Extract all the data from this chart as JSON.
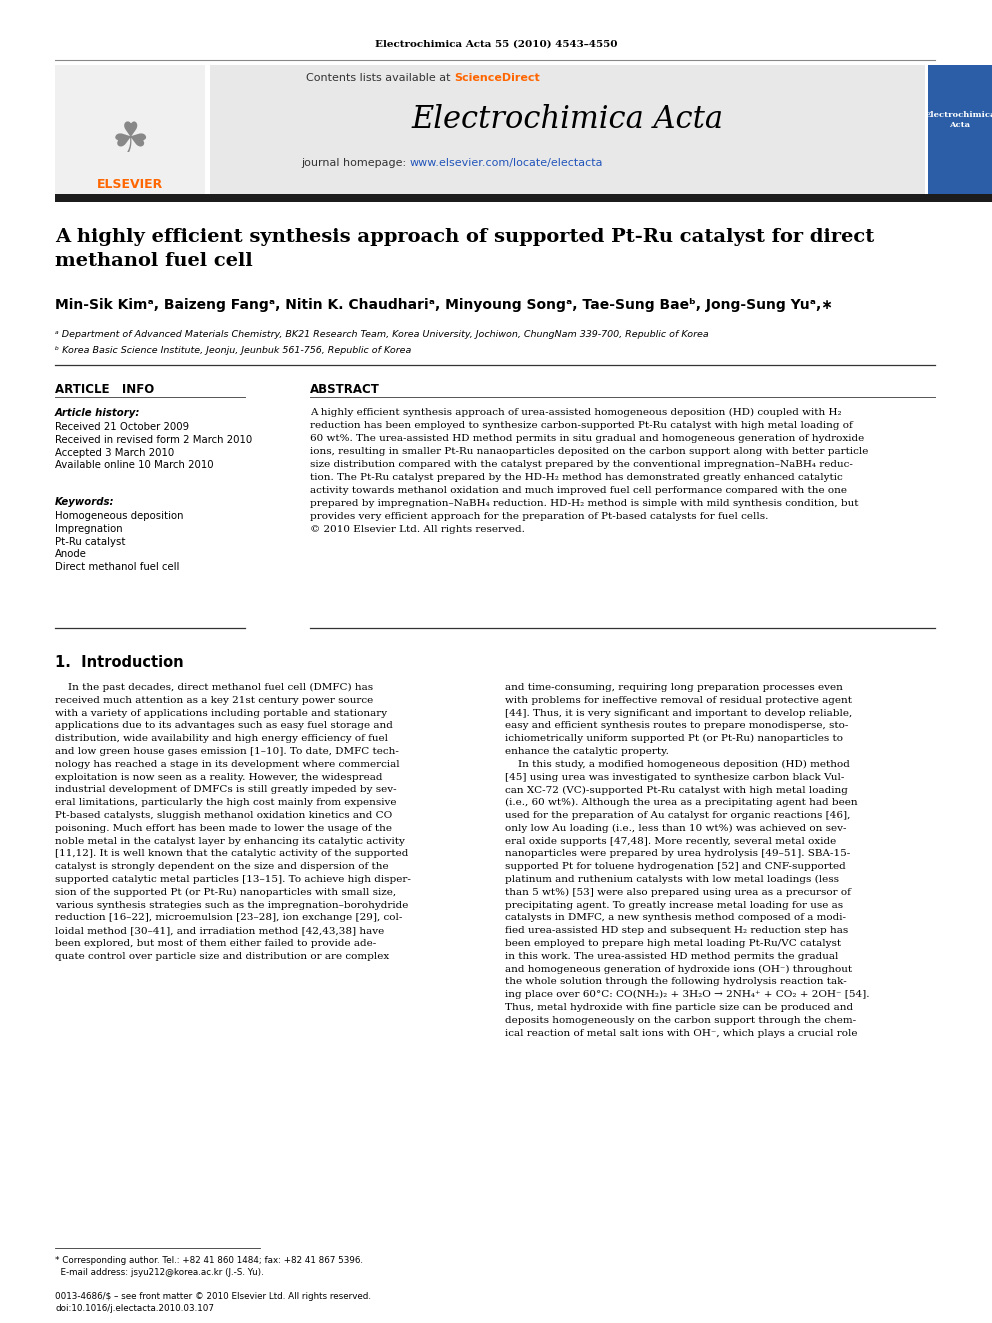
{
  "journal_header": "Electrochimica Acta 55 (2010) 4543–4550",
  "contents_line": "Contents lists available at ScienceDirect",
  "sciencedirect_color": "#FF6600",
  "journal_name": "Electrochimica Acta",
  "journal_homepage_prefix": "journal homepage: ",
  "journal_homepage_link": "www.elsevier.com/locate/electacta",
  "homepage_color": "#0000CC",
  "paper_title": "A highly efficient synthesis approach of supported Pt-Ru catalyst for direct\nmethanol fuel cell",
  "authors_line": "Min-Sik Kimᵃ, Baizeng Fangᵃ, Nitin K. Chaudhariᵃ, Minyoung Songᵃ, Tae-Sung Baeᵇ, Jong-Sung Yuᵃ,∗",
  "affil_a": "ᵃ Department of Advanced Materials Chemistry, BK21 Research Team, Korea University, Jochiwon, ChungNam 339-700, Republic of Korea",
  "affil_b": "ᵇ Korea Basic Science Institute, Jeonju, Jeunbuk 561-756, Republic of Korea",
  "article_info_header": "ARTICLE   INFO",
  "article_history_header": "Article history:",
  "article_history": "Received 21 October 2009\nReceived in revised form 2 March 2010\nAccepted 3 March 2010\nAvailable online 10 March 2010",
  "keywords_header": "Keywords:",
  "keywords": "Homogeneous deposition\nImpregnation\nPt-Ru catalyst\nAnode\nDirect methanol fuel cell",
  "abstract_header": "ABSTRACT",
  "abstract_text": "A highly efficient synthesis approach of urea-assisted homogeneous deposition (HD) coupled with H₂\nreduction has been employed to synthesize carbon-supported Pt-Ru catalyst with high metal loading of\n60 wt%. The urea-assisted HD method permits in situ gradual and homogeneous generation of hydroxide\nions, resulting in smaller Pt-Ru nanaoparticles deposited on the carbon support along with better particle\nsize distribution compared with the catalyst prepared by the conventional impregnation–NaBH₄ reduc-\ntion. The Pt-Ru catalyst prepared by the HD-H₂ method has demonstrated greatly enhanced catalytic\nactivity towards methanol oxidation and much improved fuel cell performance compared with the one\nprepared by impregnation–NaBH₄ reduction. HD-H₂ method is simple with mild synthesis condition, but\nprovides very efficient approach for the preparation of Pt-based catalysts for fuel cells.\n© 2010 Elsevier Ltd. All rights reserved.",
  "section1_header": "1.  Introduction",
  "intro_text_left": "    In the past decades, direct methanol fuel cell (DMFC) has\nreceived much attention as a key 21st century power source\nwith a variety of applications including portable and stationary\napplications due to its advantages such as easy fuel storage and\ndistribution, wide availability and high energy efficiency of fuel\nand low green house gases emission [1–10]. To date, DMFC tech-\nnology has reached a stage in its development where commercial\nexploitation is now seen as a reality. However, the widespread\nindustrial development of DMFCs is still greatly impeded by sev-\neral limitations, particularly the high cost mainly from expensive\nPt-based catalysts, sluggish methanol oxidation kinetics and CO\npoisoning. Much effort has been made to lower the usage of the\nnoble metal in the catalyst layer by enhancing its catalytic activity\n[11,12]. It is well known that the catalytic activity of the supported\ncatalyst is strongly dependent on the size and dispersion of the\nsupported catalytic metal particles [13–15]. To achieve high disper-\nsion of the supported Pt (or Pt-Ru) nanoparticles with small size,\nvarious synthesis strategies such as the impregnation–borohydride\nreduction [16–22], microemulsion [23–28], ion exchange [29], col-\nloidal method [30–41], and irradiation method [42,43,38] have\nbeen explored, but most of them either failed to provide ade-\nquate control over particle size and distribution or are complex",
  "intro_text_right": "and time-consuming, requiring long preparation processes even\nwith problems for ineffective removal of residual protective agent\n[44]. Thus, it is very significant and important to develop reliable,\neasy and efficient synthesis routes to prepare monodisperse, sto-\nichiometrically uniform supported Pt (or Pt-Ru) nanoparticles to\nenhance the catalytic property.\n    In this study, a modified homogeneous deposition (HD) method\n[45] using urea was investigated to synthesize carbon black Vul-\ncan XC-72 (VC)-supported Pt-Ru catalyst with high metal loading\n(i.e., 60 wt%). Although the urea as a precipitating agent had been\nused for the preparation of Au catalyst for organic reactions [46],\nonly low Au loading (i.e., less than 10 wt%) was achieved on sev-\neral oxide supports [47,48]. More recently, several metal oxide\nnanoparticles were prepared by urea hydrolysis [49–51]. SBA-15-\nsupported Pt for toluene hydrogenation [52] and CNF-supported\nplatinum and ruthenium catalysts with low metal loadings (less\nthan 5 wt%) [53] were also prepared using urea as a precursor of\nprecipitating agent. To greatly increase metal loading for use as\ncatalysts in DMFC, a new synthesis method composed of a modi-\nfied urea-assisted HD step and subsequent H₂ reduction step has\nbeen employed to prepare high metal loading Pt-Ru/VC catalyst\nin this work. The urea-assisted HD method permits the gradual\nand homogeneous generation of hydroxide ions (OH⁻) throughout\nthe whole solution through the following hydrolysis reaction tak-\ning place over 60°C: CO(NH₂)₂ + 3H₂O → 2NH₄⁺ + CO₂ + 2OH⁻ [54].\nThus, metal hydroxide with fine particle size can be produced and\ndeposits homogeneously on the carbon support through the chem-\nical reaction of metal salt ions with OH⁻, which plays a crucial role",
  "footnote_star": "* Corresponding author. Tel.: +82 41 860 1484; fax: +82 41 867 5396.",
  "footnote_email": "  E-mail address: jsyu212@korea.ac.kr (J.-S. Yu).",
  "footer_line1": "0013-4686/$ – see front matter © 2010 Elsevier Ltd. All rights reserved.",
  "footer_line2": "doi:10.1016/j.electacta.2010.03.107",
  "bg_color": "#FFFFFF",
  "text_color": "#000000",
  "header_bar_color": "#1C1C1C",
  "header_bg_color": "#E8E8E8",
  "link_color": "#2255BB",
  "elsevier_orange": "#FF6600",
  "divider_color": "#333333"
}
